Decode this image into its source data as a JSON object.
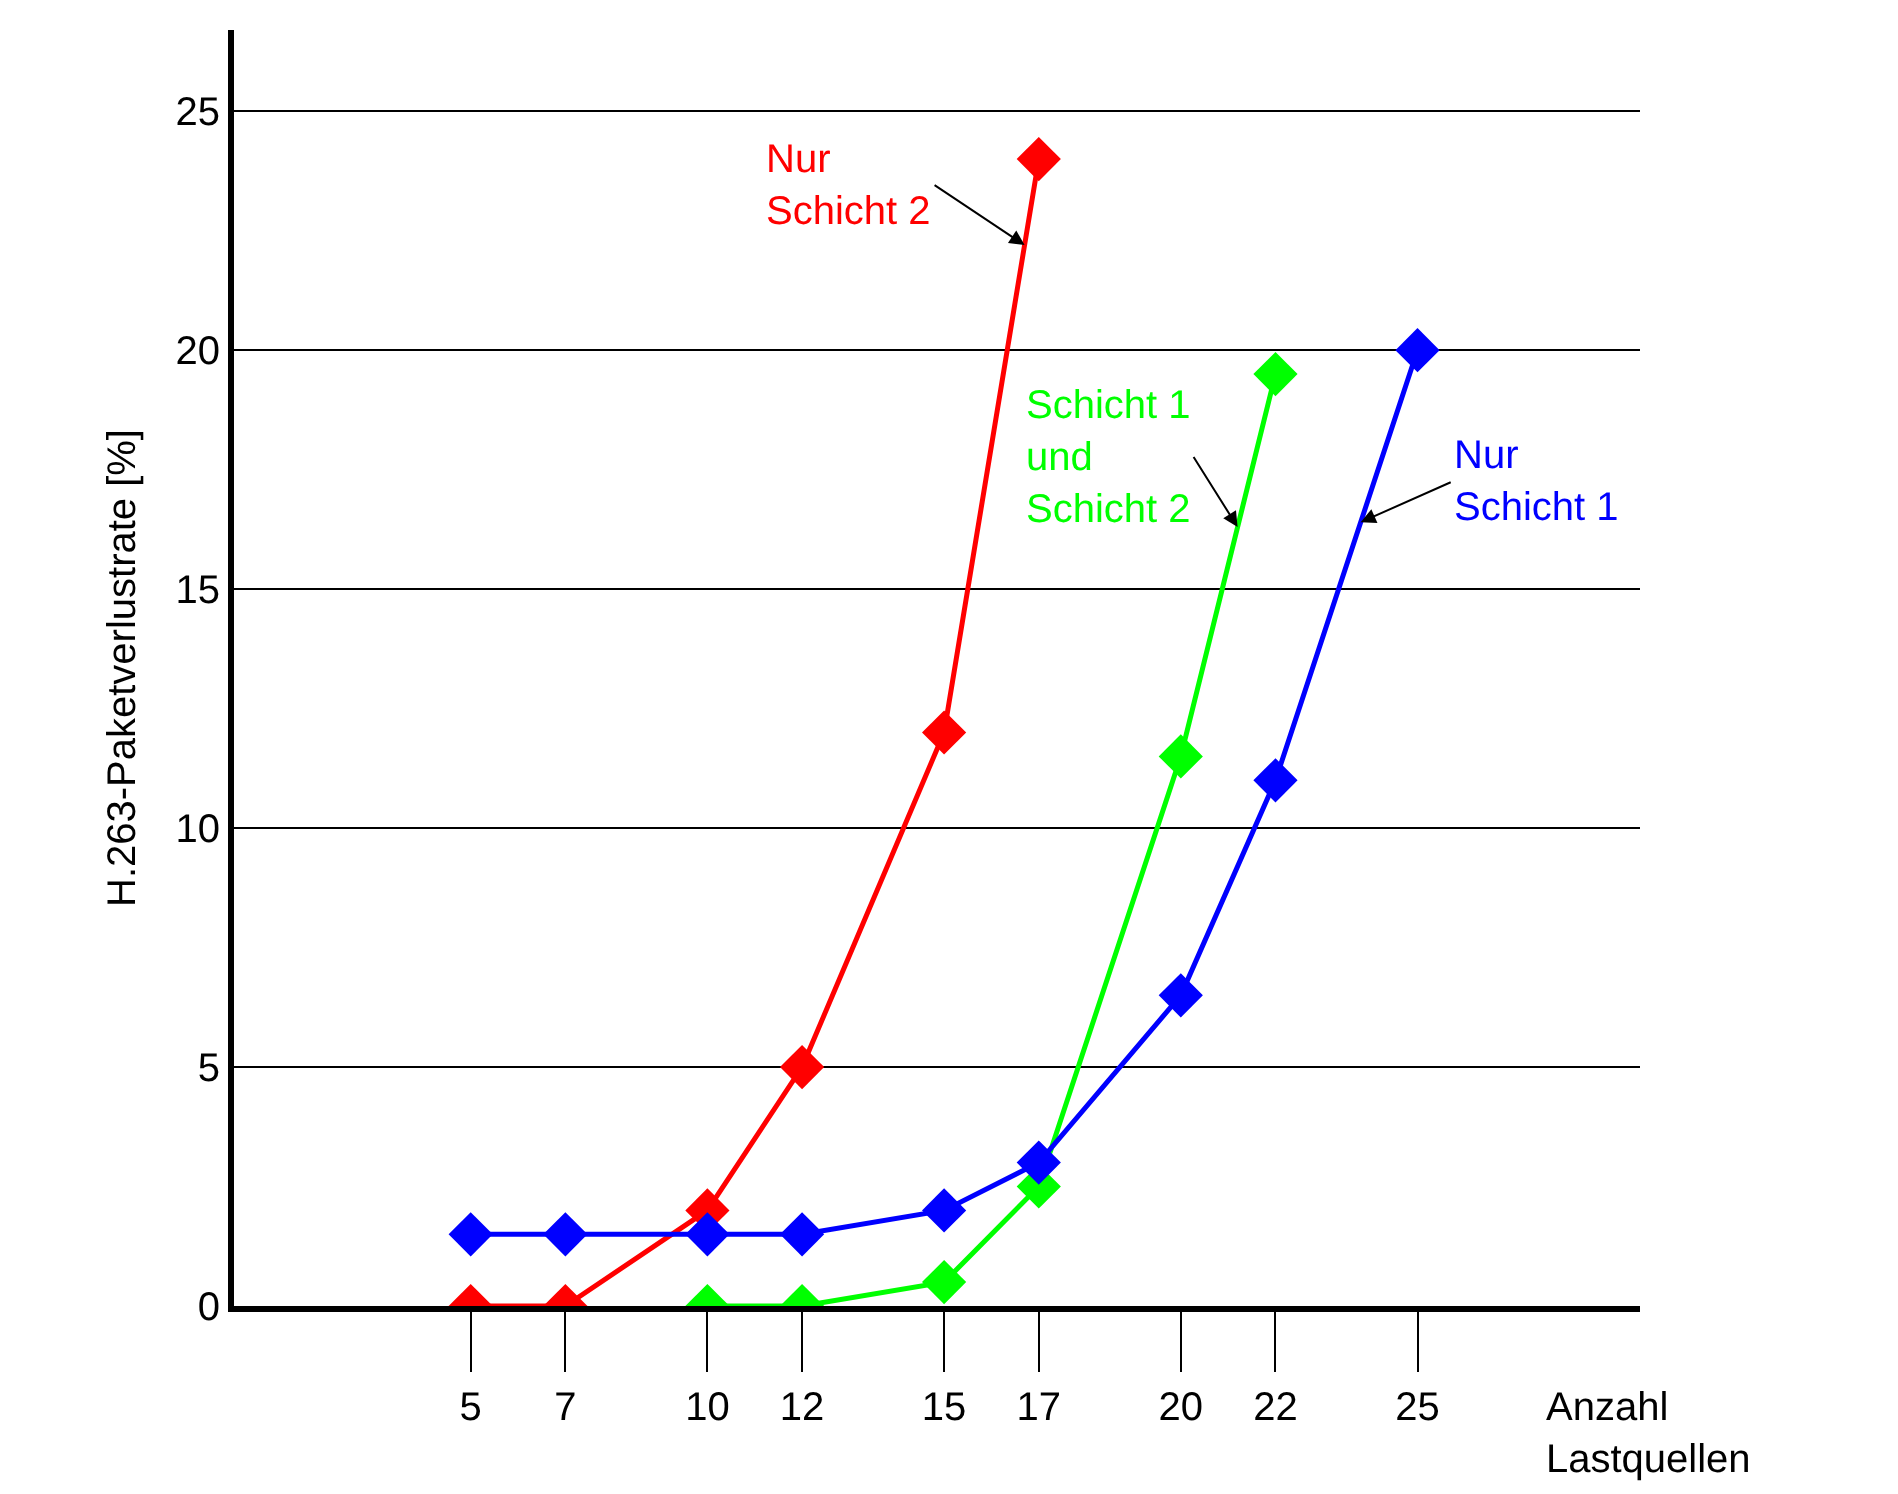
{
  "chart_data": {
    "type": "line",
    "xlabel": "Anzahl\nLastquellen",
    "ylabel": "H.263-Paketverlustrate [%]",
    "xlim": [
      0,
      29.7
    ],
    "ylim": [
      0,
      26.7
    ],
    "xticks": [
      5,
      7,
      10,
      12,
      15,
      17,
      20,
      22,
      25
    ],
    "yticks": [
      0,
      5,
      10,
      15,
      20,
      25
    ],
    "grid": "y",
    "legend": false,
    "marker": "diamond",
    "line_style": "solid",
    "series": [
      {
        "name": "Nur\nSchicht 2",
        "color": "#ff0000",
        "x": [
          5,
          7,
          10,
          12,
          15,
          17
        ],
        "values": [
          0,
          0,
          2,
          5,
          12,
          24
        ]
      },
      {
        "name": "Schicht 1\nund\nSchicht 2",
        "color": "#00ff00",
        "x": [
          10,
          12,
          15,
          17,
          20,
          22
        ],
        "values": [
          0,
          0,
          0.5,
          2.5,
          11.5,
          19.5
        ]
      },
      {
        "name": "Nur\nSchicht 1",
        "color": "#0000ff",
        "x": [
          5,
          7,
          10,
          12,
          15,
          17,
          20,
          22,
          25
        ],
        "values": [
          1.5,
          1.5,
          1.5,
          1.5,
          2,
          3,
          6.5,
          11,
          20
        ]
      }
    ]
  }
}
